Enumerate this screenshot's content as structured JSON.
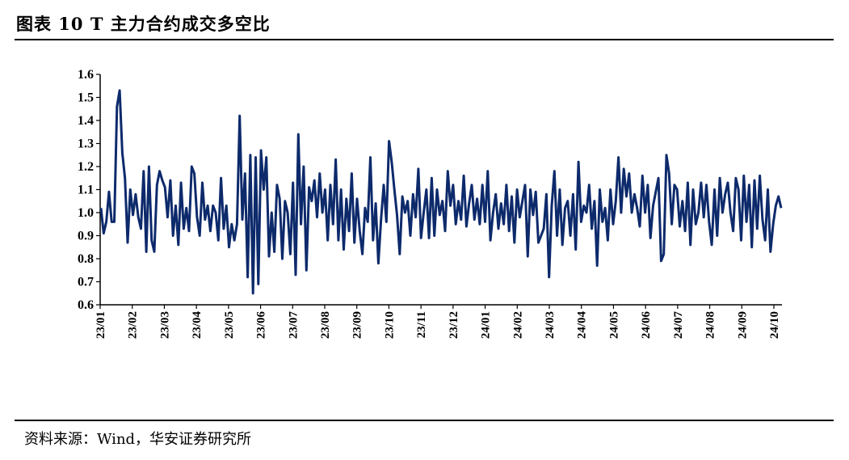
{
  "title": "图表 10 T 主力合约成交多空比",
  "source": "资料来源：Wind，华安证券研究所",
  "colors": {
    "line": "#0d2a6b",
    "axis": "#000000"
  },
  "chart_data": {
    "type": "line",
    "title": "图表 10 T 主力合约成交多空比",
    "xlabel": "",
    "ylabel": "",
    "ylim": [
      0.6,
      1.6
    ],
    "yticks": [
      "0.6",
      "0.7",
      "0.8",
      "0.9",
      "1.0",
      "1.1",
      "1.2",
      "1.3",
      "1.4",
      "1.5",
      "1.6"
    ],
    "xticks": [
      "23/01",
      "23/02",
      "23/03",
      "23/04",
      "23/05",
      "23/06",
      "23/07",
      "23/08",
      "23/09",
      "23/10",
      "23/11",
      "23/12",
      "24/01",
      "24/02",
      "24/03",
      "24/04",
      "24/05",
      "24/06",
      "24/07",
      "24/08",
      "24/09",
      "24/10"
    ],
    "grid": false,
    "legend": "none",
    "series": [
      {
        "values": [
          1.02,
          0.91,
          0.96,
          1.09,
          0.96,
          0.96,
          1.46,
          1.53,
          1.26,
          1.15,
          0.87,
          1.1,
          0.99,
          1.08,
          0.98,
          0.93,
          1.18,
          0.83,
          1.2,
          0.88,
          0.83,
          1.12,
          1.18,
          1.14,
          1.11,
          0.98,
          1.14,
          0.9,
          1.03,
          0.86,
          1.13,
          0.93,
          1.02,
          0.92,
          1.2,
          1.17,
          0.98,
          0.9,
          1.13,
          0.97,
          1.03,
          0.92,
          1.03,
          1.0,
          0.88,
          1.15,
          0.93,
          1.03,
          0.85,
          0.95,
          0.88,
          0.95,
          1.42,
          0.97,
          1.17,
          0.72,
          1.25,
          0.65,
          1.24,
          0.69,
          1.27,
          1.1,
          1.24,
          0.81,
          1.0,
          0.83,
          1.12,
          1.06,
          0.8,
          1.05,
          1.0,
          0.82,
          1.13,
          0.73,
          1.34,
          0.95,
          1.2,
          0.75,
          1.11,
          1.05,
          1.14,
          0.98,
          1.17,
          1.0,
          1.1,
          0.88,
          1.12,
          0.95,
          1.23,
          0.88,
          1.1,
          0.84,
          1.06,
          0.92,
          1.17,
          0.87,
          1.06,
          0.92,
          0.82,
          1.02,
          0.96,
          1.24,
          0.88,
          1.04,
          0.78,
          0.97,
          1.12,
          0.96,
          1.31,
          1.22,
          1.1,
          0.99,
          0.82,
          1.07,
          1.0,
          1.05,
          0.9,
          1.08,
          0.98,
          1.19,
          0.89,
          1.0,
          1.1,
          0.89,
          1.15,
          0.9,
          1.1,
          0.99,
          1.05,
          0.92,
          1.18,
          1.03,
          1.12,
          0.95,
          1.05,
          0.97,
          1.16,
          0.94,
          1.04,
          1.12,
          0.97,
          1.06,
          0.95,
          1.12,
          0.96,
          1.18,
          0.88,
          1.0,
          1.08,
          0.93,
          1.04,
          0.95,
          1.12,
          0.92,
          1.07,
          0.87,
          1.1,
          0.98,
          1.05,
          1.12,
          0.81,
          1.1,
          0.99,
          1.09,
          0.87,
          0.9,
          0.93,
          1.08,
          0.72,
          1.03,
          1.18,
          0.9,
          1.1,
          0.86,
          1.02,
          1.05,
          0.9,
          1.08,
          0.84,
          1.22,
          0.96,
          1.03,
          1.0,
          1.12,
          0.93,
          1.05,
          0.77,
          1.1,
          0.96,
          1.02,
          0.88,
          1.1,
          0.95,
          1.05,
          1.24,
          1.0,
          1.19,
          1.07,
          1.17,
          1.0,
          1.08,
          1.02,
          0.94,
          1.16,
          1.0,
          1.12,
          0.89,
          1.03,
          1.09,
          1.15,
          0.79,
          0.82,
          1.25,
          1.17,
          0.95,
          1.12,
          1.1,
          0.94,
          1.05,
          0.92,
          1.13,
          0.86,
          1.1,
          0.95,
          1.0,
          1.13,
          0.98,
          1.12,
          0.96,
          0.86,
          1.1,
          0.9,
          1.15,
          1.0,
          1.08,
          1.13,
          1.0,
          0.92,
          1.15,
          1.1,
          0.88,
          1.16,
          0.96,
          1.12,
          0.85,
          1.14,
          0.93,
          1.16,
          0.97,
          0.88,
          1.1,
          0.83,
          0.95,
          1.03,
          1.07,
          1.02
        ]
      }
    ]
  }
}
